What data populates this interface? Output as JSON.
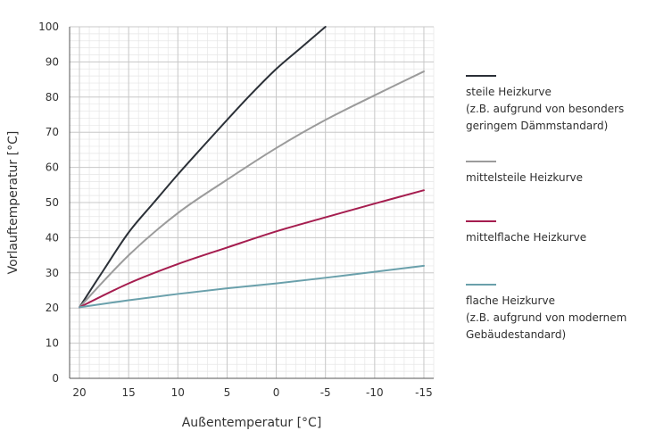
{
  "chart_data": {
    "type": "line",
    "xlabel": "Außentemperatur [°C]",
    "ylabel": "Vorlauftemperatur [°C]",
    "x_ticks": [
      20,
      15,
      10,
      5,
      0,
      -5,
      -10,
      -15
    ],
    "x_tick_labels": [
      "20",
      "15",
      "10",
      "5",
      "0",
      "-5",
      "-10",
      "-15"
    ],
    "y_ticks": [
      0,
      10,
      20,
      30,
      40,
      50,
      60,
      70,
      80,
      90,
      100
    ],
    "y_tick_labels": [
      "0",
      "10",
      "20",
      "30",
      "40",
      "50",
      "60",
      "70",
      "80",
      "90",
      "100"
    ],
    "xlim": [
      21,
      -16
    ],
    "ylim": [
      0,
      100
    ],
    "x_reversed": true,
    "grid": true,
    "legend_position": "right",
    "series": [
      {
        "name": "steile Heizkurve\n(z.B. aufgrund von besonders\ngeringem Dämmstandard)",
        "color": "#2b3037",
        "x": [
          20,
          17.5,
          15,
          12.5,
          10,
          7.5,
          5,
          2.5,
          0,
          -2.5,
          -5
        ],
        "y": [
          20.2,
          31,
          41.5,
          49.8,
          58,
          65.8,
          73.5,
          81,
          88,
          94,
          100
        ]
      },
      {
        "name": "mittelsteile Heizkurve",
        "color": "#9b9b9b",
        "x": [
          20,
          15,
          10,
          5,
          0,
          -5,
          -10,
          -15
        ],
        "y": [
          20.2,
          35,
          47,
          56.5,
          65.5,
          73.5,
          80.5,
          87.3
        ]
      },
      {
        "name": "mittelflache Heizkurve",
        "color": "#a51d4f",
        "x": [
          20,
          15,
          10,
          5,
          0,
          -5,
          -10,
          -15
        ],
        "y": [
          20.2,
          27,
          32.5,
          37.2,
          41.8,
          45.8,
          49.7,
          53.5
        ]
      },
      {
        "name": "flache Heizkurve\n(z.B. aufgrund von modernem\nGebäudestandard)",
        "color": "#6aa0ab",
        "x": [
          20,
          15,
          10,
          5,
          0,
          -5,
          -10,
          -15
        ],
        "y": [
          20.2,
          22.2,
          24,
          25.6,
          27,
          28.6,
          30.3,
          32
        ]
      }
    ]
  },
  "colors": {
    "grid_major": "#c8c8c8",
    "grid_minor": "#e6e6e6",
    "axis": "#555555",
    "text": "#333333"
  }
}
